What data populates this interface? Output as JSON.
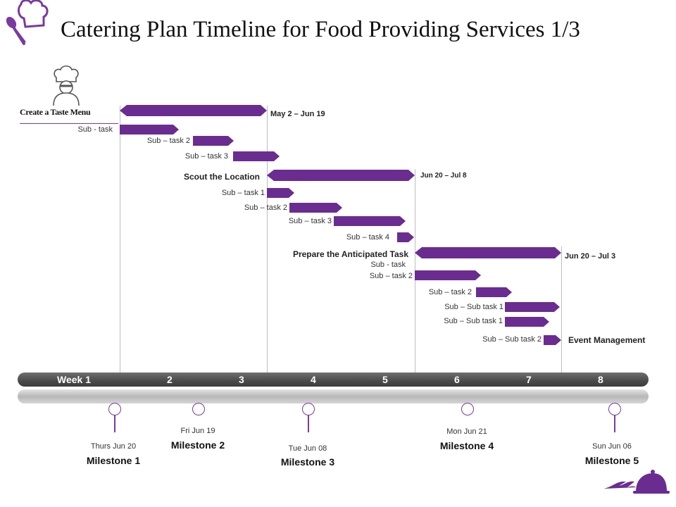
{
  "title": "Catering Plan Timeline for Food Providing Services 1/3",
  "colors": {
    "accent": "#6a2c91",
    "timeline_bar": "#4a4a4a"
  },
  "icons": {
    "logo": "fork-spoon-chefhat-icon",
    "chef": "chef-icon",
    "cloche": "cloche-icon"
  },
  "tasks": [
    {
      "label": "Create a Taste Menu",
      "date_range": "May 2 – Jun 19",
      "type": "main"
    },
    {
      "label": "Sub - task",
      "type": "sub"
    },
    {
      "label": "Sub – task 2",
      "type": "sub"
    },
    {
      "label": "Sub – task 3",
      "type": "sub"
    },
    {
      "label": "Scout the Location",
      "date_range": "Jun 20 – Jul 8",
      "type": "main"
    },
    {
      "label": "Sub – task 1",
      "type": "sub"
    },
    {
      "label": "Sub – task 2",
      "type": "sub"
    },
    {
      "label": "Sub – task 3",
      "type": "sub"
    },
    {
      "label": "Sub – task 4",
      "type": "sub"
    },
    {
      "label": "Prepare the Anticipated Task",
      "date_range": "Jun 20 – Jul 3",
      "type": "main"
    },
    {
      "label": "Sub - task",
      "type": "sub"
    },
    {
      "label": "Sub – task 2",
      "type": "sub"
    },
    {
      "label": "Sub – task 2",
      "type": "sub"
    },
    {
      "label": "Sub – Sub task 1",
      "type": "sub"
    },
    {
      "label": "Sub – Sub task 1",
      "type": "sub"
    },
    {
      "label": "Sub – Sub task 2",
      "type": "sub"
    },
    {
      "label": "Event Management",
      "type": "main"
    }
  ],
  "weeks": [
    "Week 1",
    "2",
    "3",
    "4",
    "5",
    "6",
    "7",
    "8"
  ],
  "milestones": [
    {
      "name": "Milestone 1",
      "date": "Thurs Jun 20"
    },
    {
      "name": "Milestone 2",
      "date": "Fri Jun 19"
    },
    {
      "name": "Milestone 3",
      "date": "Tue Jun 08"
    },
    {
      "name": "Milestone 4",
      "date": "Mon Jun 21"
    },
    {
      "name": "Milestone 5",
      "date": "Sun Jun 06"
    }
  ]
}
